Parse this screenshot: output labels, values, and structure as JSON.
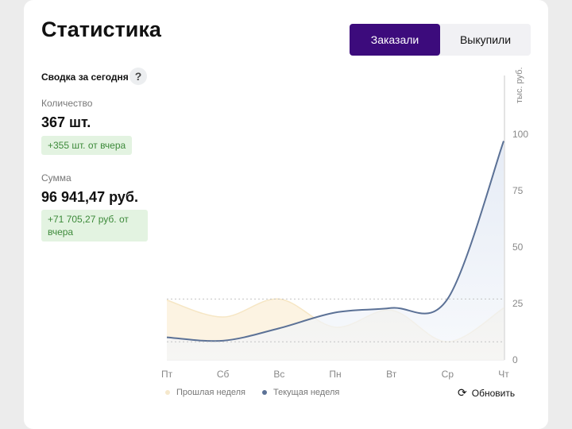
{
  "header": {
    "title": "Статистика",
    "tabs": [
      {
        "label": "Заказали",
        "active": true
      },
      {
        "label": "Выкупили",
        "active": false
      }
    ]
  },
  "summary": {
    "title": "Сводка за сегодня",
    "help": "?",
    "quantity": {
      "label": "Количество",
      "value": "367 шт.",
      "delta": "+355 шт. от вчера"
    },
    "sum": {
      "label": "Сумма",
      "value": "96 941,47 руб.",
      "delta": "+71 705,27 руб. от вчера"
    }
  },
  "refresh_label": "Обновить",
  "colors": {
    "accent": "#3c0b7c",
    "current": "#5b7196",
    "previous": "#f5deb0",
    "delta_bg": "#e3f3e1",
    "delta_text": "#3d8a3a"
  },
  "chart_data": {
    "type": "area",
    "ylabel": "тыс. руб.",
    "categories": [
      "Пт",
      "Сб",
      "Вс",
      "Пн",
      "Вт",
      "Ср",
      "Чт"
    ],
    "yticks": [
      0,
      25,
      50,
      75,
      100
    ],
    "ylim": [
      0,
      100
    ],
    "series": [
      {
        "name": "Прошлая неделя",
        "values": [
          26.5,
          19,
          27,
          14.5,
          22,
          8,
          23
        ]
      },
      {
        "name": "Текущая неделя",
        "values": [
          10,
          8.5,
          14,
          21,
          23,
          27,
          97
        ]
      }
    ],
    "reference_lines": [
      27,
      8
    ],
    "legend": "bottom-left"
  }
}
